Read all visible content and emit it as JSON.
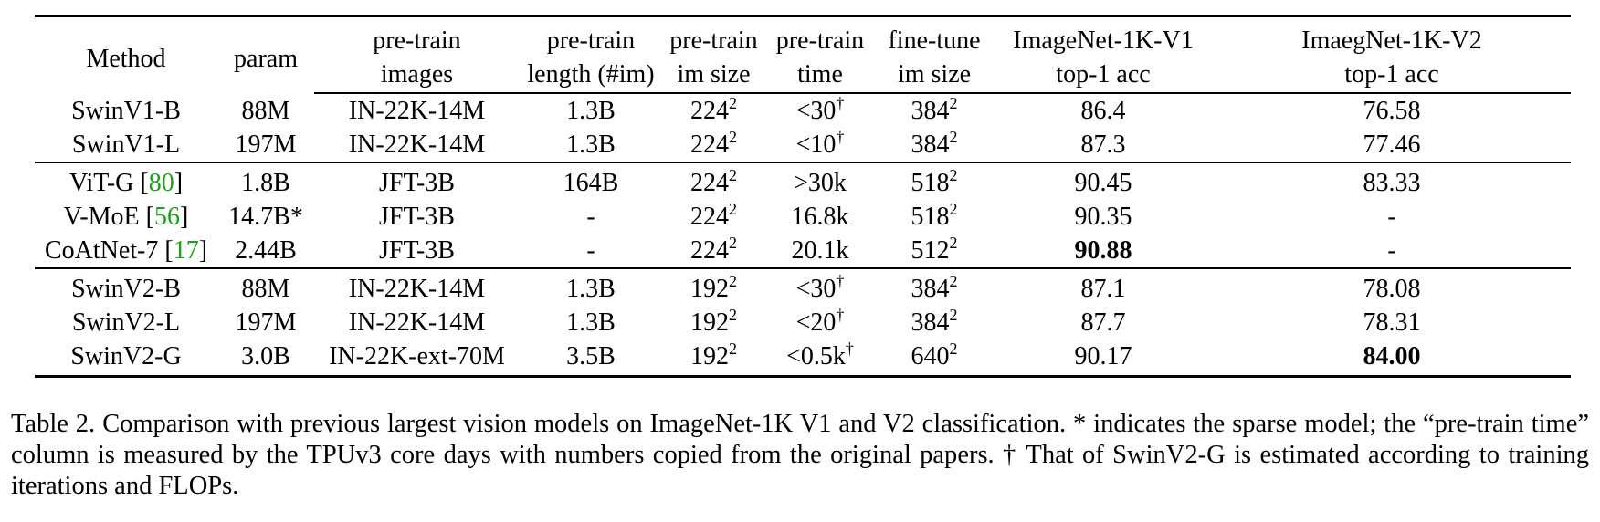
{
  "table": {
    "headers": [
      [
        "Method"
      ],
      [
        "param"
      ],
      [
        "pre-train",
        "images"
      ],
      [
        "pre-train",
        "length (#im)"
      ],
      [
        "pre-train",
        "im size"
      ],
      [
        "pre-train",
        "time"
      ],
      [
        "fine-tune",
        "im size"
      ],
      [
        "ImageNet-1K-V1",
        "top-1 acc"
      ],
      [
        "ImaegNet-1K-V2",
        "top-1 acc"
      ]
    ],
    "groups": [
      [
        {
          "method": "SwinV1-B",
          "param": "88M",
          "images": "IN-22K-14M",
          "length": "1.3B",
          "pt_size": "224",
          "pt_size_exp": "2",
          "time": "<30",
          "time_mark": "†",
          "ft_size": "384",
          "ft_size_exp": "2",
          "v1": "86.4",
          "v2": "76.58"
        },
        {
          "method": "SwinV1-L",
          "param": "197M",
          "images": "IN-22K-14M",
          "length": "1.3B",
          "pt_size": "224",
          "pt_size_exp": "2",
          "time": "<10",
          "time_mark": "†",
          "ft_size": "384",
          "ft_size_exp": "2",
          "v1": "87.3",
          "v2": "77.46"
        }
      ],
      [
        {
          "method": "ViT-G",
          "ref": "80",
          "param": "1.8B",
          "images": "JFT-3B",
          "length": "164B",
          "pt_size": "224",
          "pt_size_exp": "2",
          "time": ">30k",
          "ft_size": "518",
          "ft_size_exp": "2",
          "v1": "90.45",
          "v2": "83.33"
        },
        {
          "method": "V-MoE",
          "ref": "56",
          "param": "14.7B*",
          "images": "JFT-3B",
          "length": "-",
          "pt_size": "224",
          "pt_size_exp": "2",
          "time": "16.8k",
          "ft_size": "518",
          "ft_size_exp": "2",
          "v1": "90.35",
          "v2": "-"
        },
        {
          "method": "CoAtNet-7",
          "ref": "17",
          "param": "2.44B",
          "images": "JFT-3B",
          "length": "-",
          "pt_size": "224",
          "pt_size_exp": "2",
          "time": "20.1k",
          "ft_size": "512",
          "ft_size_exp": "2",
          "v1": "90.88",
          "v1_bold": true,
          "v2": "-"
        }
      ],
      [
        {
          "method": "SwinV2-B",
          "param": "88M",
          "images": "IN-22K-14M",
          "length": "1.3B",
          "pt_size": "192",
          "pt_size_exp": "2",
          "time": "<30",
          "time_mark": "†",
          "ft_size": "384",
          "ft_size_exp": "2",
          "v1": "87.1",
          "v2": "78.08"
        },
        {
          "method": "SwinV2-L",
          "param": "197M",
          "images": "IN-22K-14M",
          "length": "1.3B",
          "pt_size": "192",
          "pt_size_exp": "2",
          "time": "<20",
          "time_mark": "†",
          "ft_size": "384",
          "ft_size_exp": "2",
          "v1": "87.7",
          "v2": "78.31"
        },
        {
          "method": "SwinV2-G",
          "param": "3.0B",
          "images": "IN-22K-ext-70M",
          "length": "3.5B",
          "pt_size": "192",
          "pt_size_exp": "2",
          "time": "<0.5k",
          "time_mark": "†",
          "ft_size": "640",
          "ft_size_exp": "2",
          "v1": "90.17",
          "v2": "84.00",
          "v2_bold": true
        }
      ]
    ]
  },
  "caption": "Table 2. Comparison with previous largest vision models on ImageNet-1K V1 and V2 classification. * indicates the sparse model; the “pre-train time” column is measured by the TPUv3 core days with numbers copied from the original papers. † That of SwinV2-G is estimated according to training iterations and FLOPs."
}
